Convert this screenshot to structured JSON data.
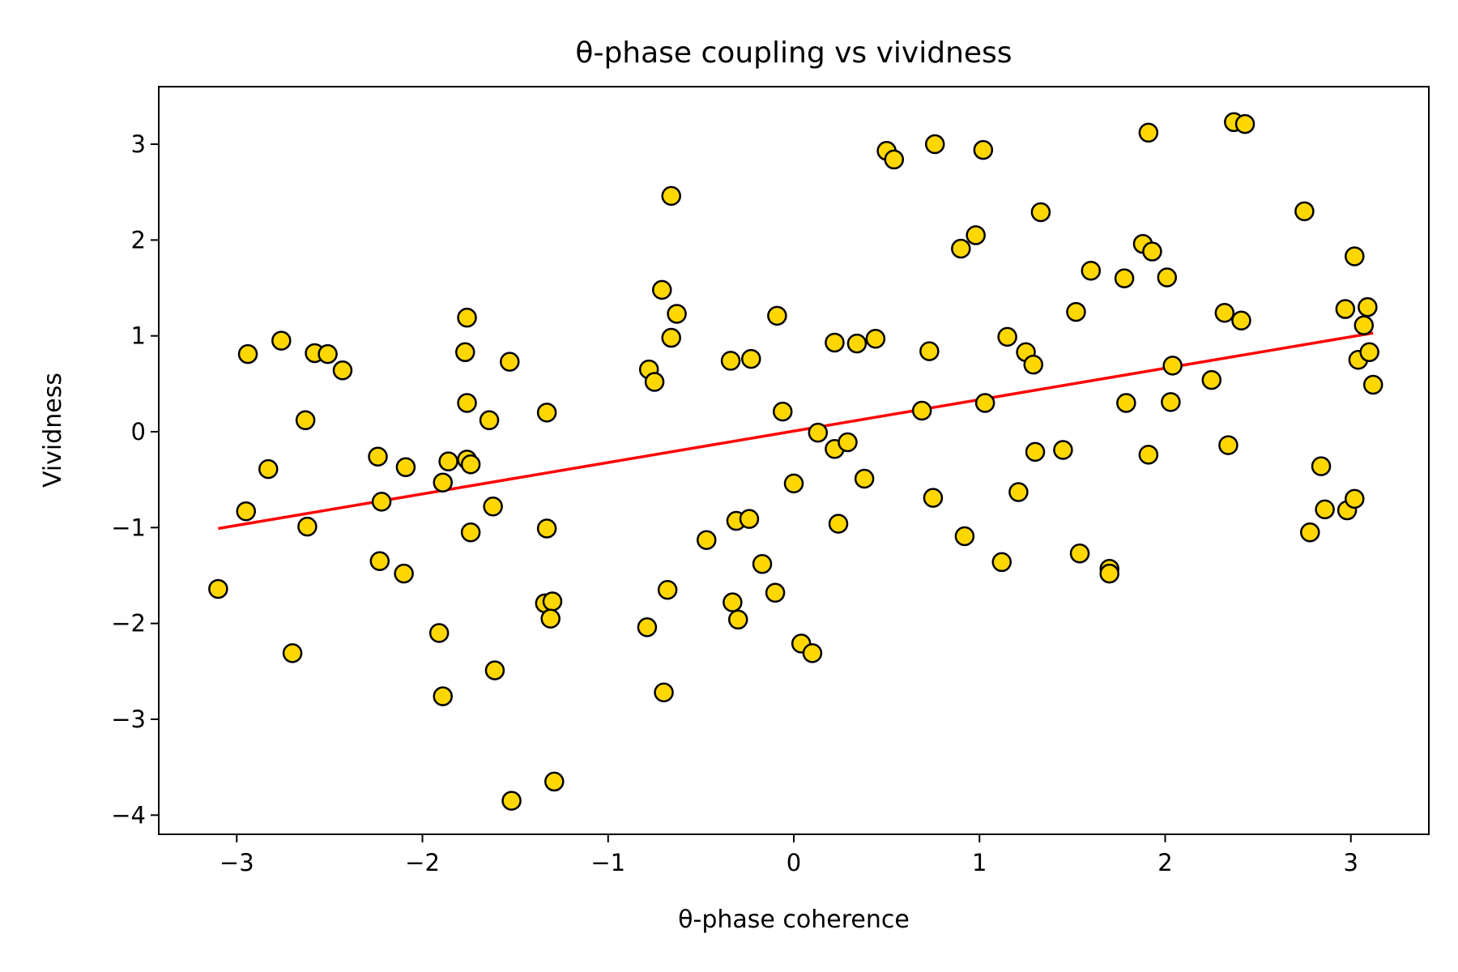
{
  "chart_data": {
    "type": "scatter",
    "title": "θ-phase coupling vs vividness",
    "xlabel": "θ-phase coherence",
    "ylabel": "Vividness",
    "xlim": [
      -3.42,
      3.42
    ],
    "ylim": [
      -4.2,
      3.6
    ],
    "x_ticks": [
      -3,
      -2,
      -1,
      0,
      1,
      2,
      3
    ],
    "x_tick_labels": [
      "−3",
      "−2",
      "−1",
      "0",
      "1",
      "2",
      "3"
    ],
    "y_ticks": [
      -4,
      -3,
      -2,
      -1,
      0,
      1,
      2,
      3
    ],
    "y_tick_labels": [
      "−4",
      "−3",
      "−2",
      "−1",
      "0",
      "1",
      "2",
      "3"
    ],
    "grid": false,
    "marker_color": "#ffd700",
    "marker_edge_color": "#000000",
    "fit_line_color": "#ff0000",
    "fit_line": {
      "x": [
        -3.1,
        3.12
      ],
      "y": [
        -1.01,
        1.03
      ]
    },
    "points": [
      [
        -3.1,
        -1.64
      ],
      [
        -2.94,
        0.81
      ],
      [
        -2.95,
        -0.83
      ],
      [
        -2.83,
        -0.39
      ],
      [
        -2.76,
        0.95
      ],
      [
        -2.7,
        -2.31
      ],
      [
        -2.63,
        0.12
      ],
      [
        -2.62,
        -0.99
      ],
      [
        -2.58,
        0.82
      ],
      [
        -2.51,
        0.81
      ],
      [
        -2.43,
        0.64
      ],
      [
        -2.24,
        -0.26
      ],
      [
        -2.23,
        -1.35
      ],
      [
        -2.22,
        -0.73
      ],
      [
        -2.09,
        -0.37
      ],
      [
        -2.1,
        -1.48
      ],
      [
        -1.91,
        -2.1
      ],
      [
        -1.89,
        -0.53
      ],
      [
        -1.89,
        -2.76
      ],
      [
        -1.86,
        -0.31
      ],
      [
        -1.77,
        0.83
      ],
      [
        -1.76,
        1.19
      ],
      [
        -1.76,
        0.3
      ],
      [
        -1.76,
        -0.29
      ],
      [
        -1.74,
        -0.34
      ],
      [
        -1.74,
        -1.05
      ],
      [
        -1.64,
        0.12
      ],
      [
        -1.62,
        -0.78
      ],
      [
        -1.61,
        -2.49
      ],
      [
        -1.53,
        0.73
      ],
      [
        -1.52,
        -3.85
      ],
      [
        -1.33,
        0.2
      ],
      [
        -1.33,
        -1.01
      ],
      [
        -1.34,
        -1.79
      ],
      [
        -1.3,
        -1.77
      ],
      [
        -1.31,
        -1.95
      ],
      [
        -1.29,
        -3.65
      ],
      [
        -0.79,
        -2.04
      ],
      [
        -0.78,
        0.65
      ],
      [
        -0.75,
        0.52
      ],
      [
        -0.71,
        1.48
      ],
      [
        -0.7,
        -2.72
      ],
      [
        -0.68,
        -1.65
      ],
      [
        -0.66,
        2.46
      ],
      [
        -0.66,
        0.98
      ],
      [
        -0.63,
        1.23
      ],
      [
        -0.47,
        -1.13
      ],
      [
        -0.34,
        0.74
      ],
      [
        -0.33,
        -1.78
      ],
      [
        -0.31,
        -0.93
      ],
      [
        -0.3,
        -1.96
      ],
      [
        -0.24,
        -0.91
      ],
      [
        -0.23,
        0.76
      ],
      [
        -0.17,
        -1.38
      ],
      [
        -0.1,
        -1.68
      ],
      [
        -0.09,
        1.21
      ],
      [
        -0.06,
        0.21
      ],
      [
        0.0,
        -0.54
      ],
      [
        0.04,
        -2.21
      ],
      [
        0.1,
        -2.31
      ],
      [
        0.13,
        -0.01
      ],
      [
        0.22,
        0.93
      ],
      [
        0.22,
        -0.18
      ],
      [
        0.24,
        -0.96
      ],
      [
        0.29,
        -0.11
      ],
      [
        0.34,
        0.92
      ],
      [
        0.38,
        -0.49
      ],
      [
        0.44,
        0.97
      ],
      [
        0.5,
        2.93
      ],
      [
        0.54,
        2.84
      ],
      [
        0.69,
        0.22
      ],
      [
        0.73,
        0.84
      ],
      [
        0.75,
        -0.69
      ],
      [
        0.76,
        3.0
      ],
      [
        0.9,
        1.91
      ],
      [
        0.92,
        -1.09
      ],
      [
        0.98,
        2.05
      ],
      [
        1.02,
        2.94
      ],
      [
        1.03,
        0.3
      ],
      [
        1.12,
        -1.36
      ],
      [
        1.15,
        0.99
      ],
      [
        1.21,
        -0.63
      ],
      [
        1.25,
        0.83
      ],
      [
        1.29,
        0.7
      ],
      [
        1.3,
        -0.21
      ],
      [
        1.33,
        2.29
      ],
      [
        1.45,
        -0.19
      ],
      [
        1.52,
        1.25
      ],
      [
        1.54,
        -1.27
      ],
      [
        1.6,
        1.68
      ],
      [
        1.7,
        -1.43
      ],
      [
        1.7,
        -1.48
      ],
      [
        1.78,
        1.6
      ],
      [
        1.79,
        0.3
      ],
      [
        1.88,
        1.96
      ],
      [
        1.91,
        -0.24
      ],
      [
        1.91,
        3.12
      ],
      [
        1.93,
        1.88
      ],
      [
        2.01,
        1.61
      ],
      [
        2.03,
        0.31
      ],
      [
        2.04,
        0.69
      ],
      [
        2.25,
        0.54
      ],
      [
        2.32,
        1.24
      ],
      [
        2.34,
        -0.14
      ],
      [
        2.37,
        3.23
      ],
      [
        2.41,
        1.16
      ],
      [
        2.43,
        3.21
      ],
      [
        2.75,
        2.3
      ],
      [
        2.78,
        -1.05
      ],
      [
        2.84,
        -0.36
      ],
      [
        2.86,
        -0.81
      ],
      [
        2.97,
        1.28
      ],
      [
        2.98,
        -0.82
      ],
      [
        3.02,
        -0.7
      ],
      [
        3.02,
        1.83
      ],
      [
        3.04,
        0.75
      ],
      [
        3.07,
        1.11
      ],
      [
        3.09,
        1.3
      ],
      [
        3.1,
        0.83
      ],
      [
        3.12,
        0.49
      ]
    ]
  }
}
